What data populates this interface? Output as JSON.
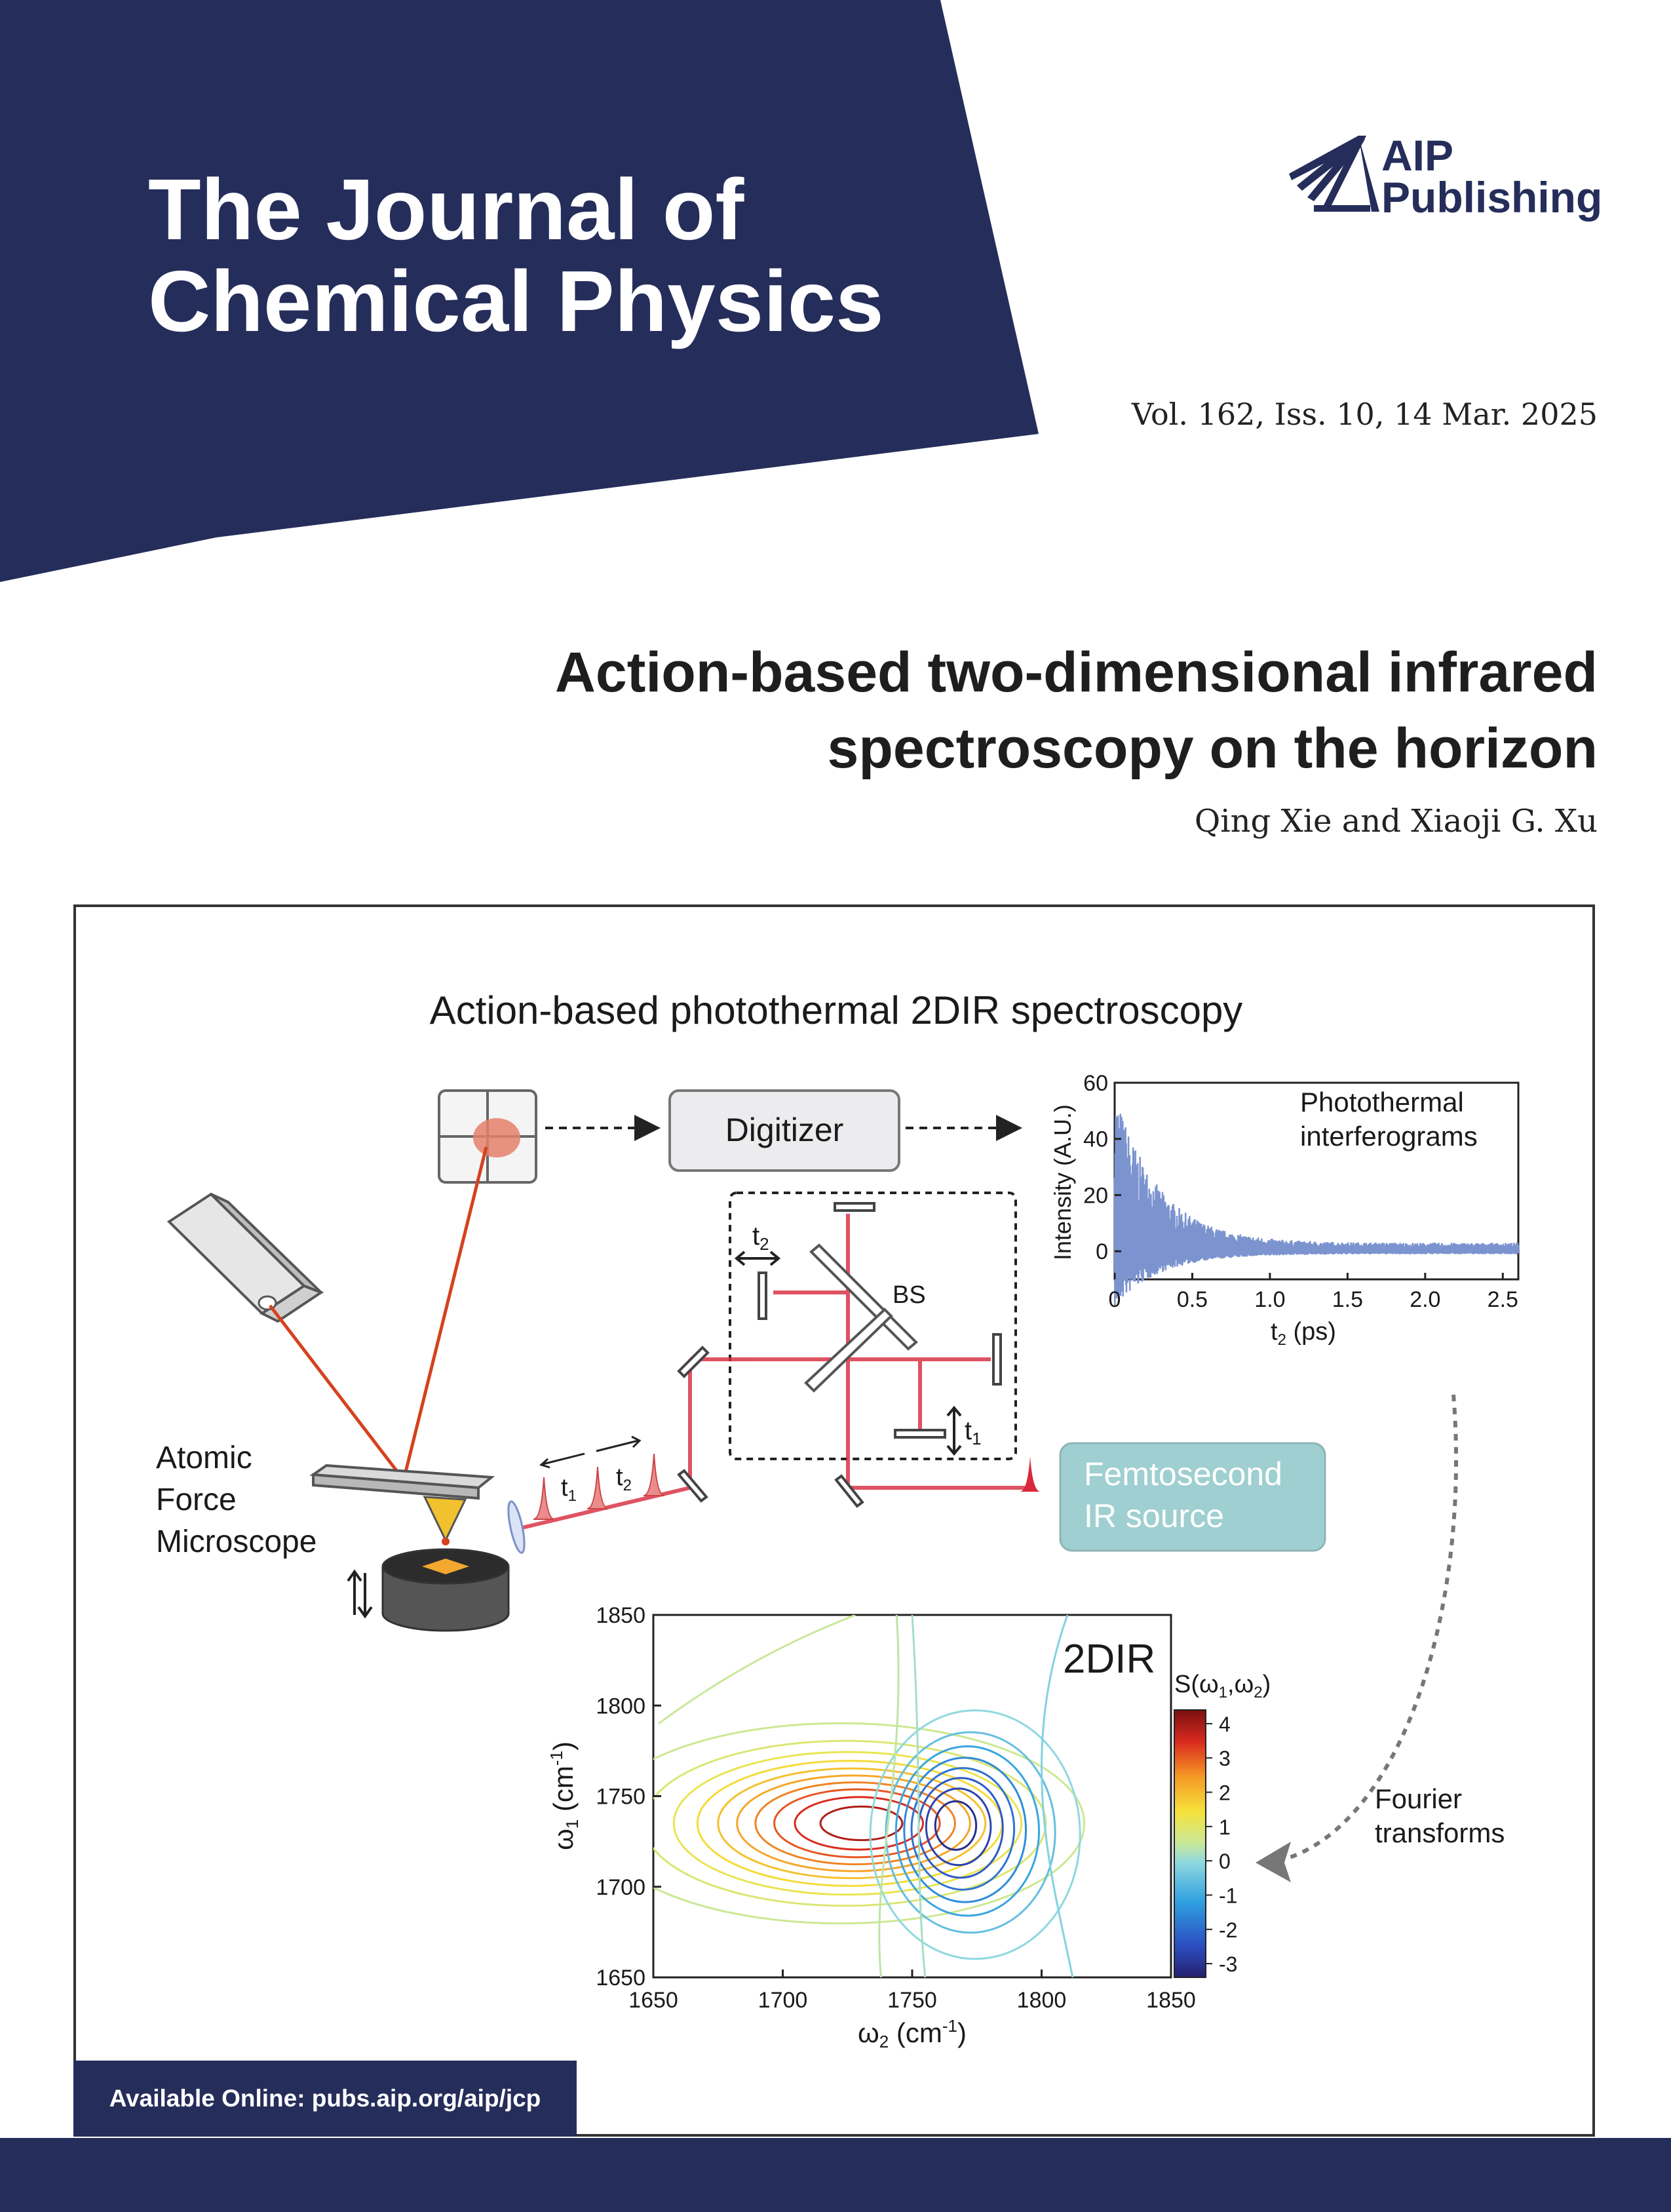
{
  "journal": {
    "title_line1": "The Journal of",
    "title_line2": "Chemical Physics"
  },
  "publisher": {
    "name_line1": "AIP",
    "name_line2": "Publishing",
    "logo_icon": "aip-fan-logo-icon"
  },
  "issue": "Vol. 162, Iss. 10, 14 Mar. 2025",
  "article": {
    "title_line1": "Action-based two-dimensional infrared",
    "title_line2": "spectroscopy on the horizon",
    "authors": "Qing Xie and Xiaoji G. Xu"
  },
  "figure": {
    "heading": "Action-based photothermal 2DIR spectroscopy",
    "digitizer": "Digitizer",
    "bs": "BS",
    "afm": [
      "Atomic",
      "Force",
      "Microscope"
    ],
    "source": [
      "Femtosecond",
      "IR source"
    ],
    "ft": [
      "Fourier",
      "transforms"
    ],
    "t_symbol": "t",
    "sub1": "1",
    "sub2": "2"
  },
  "chart_data": [
    {
      "type": "line",
      "title": "",
      "annotation": [
        "Photothermal",
        "interferograms"
      ],
      "xlabel": "t",
      "xlabel_sub": "2",
      "xlabel_unit": " (ps)",
      "ylabel": "Intensity (A.U.)",
      "xlim": [
        0,
        2.6
      ],
      "ylim": [
        -10,
        60
      ],
      "xticks": [
        "0",
        "0.5",
        "1.0",
        "1.5",
        "2.0",
        "2.5"
      ],
      "yticks": [
        "0",
        "20",
        "40",
        "60"
      ],
      "envelope": {
        "peak": 55,
        "decay_ps": 0.28,
        "baseline_noise": 3
      },
      "series_color": "#7b93cf"
    },
    {
      "type": "heatmap",
      "subtype": "contour",
      "label": "2DIR",
      "xlabel": "ω",
      "xlabel_sub": "2",
      "xlabel_unit": " (cm",
      "ylabel": "ω",
      "ylabel_sub": "1",
      "unit_exp": "-1",
      "xlim": [
        1650,
        1850
      ],
      "ylim": [
        1650,
        1850
      ],
      "xticks": [
        "1650",
        "1700",
        "1750",
        "1800",
        "1850"
      ],
      "yticks": [
        "1650",
        "1700",
        "1750",
        "1800",
        "1850"
      ],
      "colorbar_label": "S(ω",
      "colorbar_sub1": "1",
      "colorbar_sep": ",ω",
      "colorbar_sub2": "2",
      "colorbar_ticks": [
        "4",
        "3",
        "2",
        "1",
        "0",
        "-1",
        "-2",
        "-3"
      ],
      "colorbar_range": [
        -3.4,
        4.4
      ],
      "positive_peak": {
        "w2": 1732,
        "w1": 1735,
        "amplitude": 4.2
      },
      "negative_peak": {
        "w2": 1765,
        "w1": 1735,
        "amplitude": -3.4
      }
    }
  ],
  "footer": {
    "online": "Available Online: pubs.aip.org/aip/jcp"
  },
  "colors": {
    "navy": "#252d5a",
    "laser_red": "#d8283b",
    "source_teal": "#9fcfd0"
  }
}
